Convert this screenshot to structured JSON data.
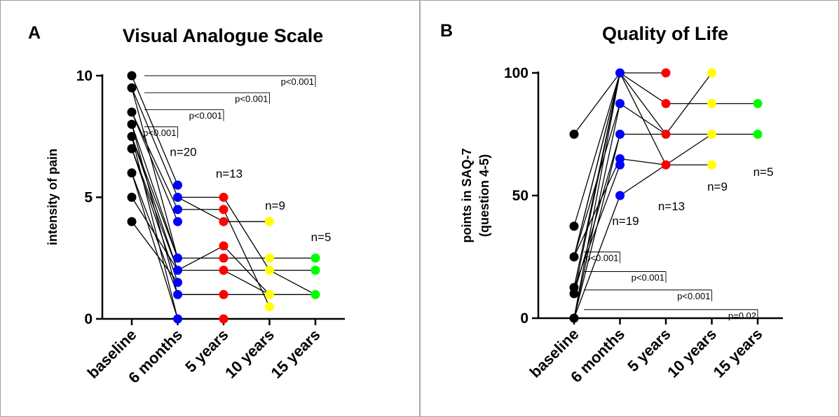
{
  "chart_data": [
    {
      "panel": "A",
      "type": "scatter",
      "title": "Visual  Analogue Scale",
      "xlabel": "",
      "ylabel": "intensity of pain",
      "categories": [
        "baseline",
        "6 months",
        "5 years",
        "10 years",
        "15 years"
      ],
      "ylim": [
        0,
        10
      ],
      "yticks": [
        0,
        5,
        10
      ],
      "group_colors": [
        "#000000",
        "#0000ff",
        "#ff0000",
        "#ffff00",
        "#00ff00"
      ],
      "points": [
        {
          "x": 0,
          "y": 10
        },
        {
          "x": 0,
          "y": 9.5
        },
        {
          "x": 0,
          "y": 8.5
        },
        {
          "x": 0,
          "y": 8
        },
        {
          "x": 0,
          "y": 7.5
        },
        {
          "x": 0,
          "y": 7
        },
        {
          "x": 0,
          "y": 6
        },
        {
          "x": 0,
          "y": 5
        },
        {
          "x": 0,
          "y": 4
        },
        {
          "x": 1,
          "y": 5.5
        },
        {
          "x": 1,
          "y": 5
        },
        {
          "x": 1,
          "y": 4.5
        },
        {
          "x": 1,
          "y": 4
        },
        {
          "x": 1,
          "y": 2.5
        },
        {
          "x": 1,
          "y": 2
        },
        {
          "x": 1,
          "y": 1.5
        },
        {
          "x": 1,
          "y": 1
        },
        {
          "x": 1,
          "y": 0
        },
        {
          "x": 2,
          "y": 5
        },
        {
          "x": 2,
          "y": 4.5
        },
        {
          "x": 2,
          "y": 4
        },
        {
          "x": 2,
          "y": 3
        },
        {
          "x": 2,
          "y": 2.5
        },
        {
          "x": 2,
          "y": 2
        },
        {
          "x": 2,
          "y": 1
        },
        {
          "x": 2,
          "y": 0
        },
        {
          "x": 3,
          "y": 4
        },
        {
          "x": 3,
          "y": 2.5
        },
        {
          "x": 3,
          "y": 2
        },
        {
          "x": 3,
          "y": 1
        },
        {
          "x": 3,
          "y": 0.5
        },
        {
          "x": 4,
          "y": 2.5
        },
        {
          "x": 4,
          "y": 2
        },
        {
          "x": 4,
          "y": 1
        }
      ],
      "links": [
        [
          [
            0,
            10
          ],
          [
            1,
            5.5
          ]
        ],
        [
          [
            0,
            9.5
          ],
          [
            1,
            5
          ]
        ],
        [
          [
            0,
            8.5
          ],
          [
            1,
            4.5
          ]
        ],
        [
          [
            0,
            8
          ],
          [
            1,
            2.5
          ]
        ],
        [
          [
            0,
            7.5
          ],
          [
            1,
            2.5
          ]
        ],
        [
          [
            0,
            7.5
          ],
          [
            1,
            2
          ]
        ],
        [
          [
            0,
            7
          ],
          [
            1,
            2
          ]
        ],
        [
          [
            0,
            7
          ],
          [
            1,
            1.5
          ]
        ],
        [
          [
            0,
            8
          ],
          [
            1,
            1
          ]
        ],
        [
          [
            0,
            6
          ],
          [
            1,
            1
          ]
        ],
        [
          [
            0,
            5
          ],
          [
            1,
            2
          ]
        ],
        [
          [
            0,
            4
          ],
          [
            1,
            1.5
          ]
        ],
        [
          [
            0,
            7.5
          ],
          [
            1,
            0
          ]
        ],
        [
          [
            0,
            9.5
          ],
          [
            1,
            2.5
          ]
        ],
        [
          [
            0,
            8.5
          ],
          [
            1,
            4
          ]
        ],
        [
          [
            0,
            6
          ],
          [
            1,
            0
          ]
        ],
        [
          [
            1,
            5
          ],
          [
            2,
            5
          ]
        ],
        [
          [
            1,
            4.5
          ],
          [
            2,
            4.5
          ]
        ],
        [
          [
            1,
            5
          ],
          [
            2,
            4
          ]
        ],
        [
          [
            1,
            2.5
          ],
          [
            2,
            2.5
          ]
        ],
        [
          [
            1,
            2
          ],
          [
            2,
            2
          ]
        ],
        [
          [
            1,
            2
          ],
          [
            2,
            3
          ]
        ],
        [
          [
            1,
            1
          ],
          [
            2,
            1
          ]
        ],
        [
          [
            1,
            0
          ],
          [
            2,
            0
          ]
        ],
        [
          [
            1,
            1
          ],
          [
            2,
            1
          ]
        ],
        [
          [
            2,
            5
          ],
          [
            3,
            2
          ]
        ],
        [
          [
            2,
            4
          ],
          [
            3,
            4
          ]
        ],
        [
          [
            2,
            3
          ],
          [
            3,
            1
          ]
        ],
        [
          [
            2,
            2.5
          ],
          [
            3,
            2.5
          ]
        ],
        [
          [
            2,
            2
          ],
          [
            3,
            2
          ]
        ],
        [
          [
            2,
            4.5
          ],
          [
            3,
            0.5
          ]
        ],
        [
          [
            2,
            1
          ],
          [
            3,
            1
          ]
        ],
        [
          [
            2,
            2
          ],
          [
            3,
            1
          ]
        ],
        [
          [
            3,
            2.5
          ],
          [
            4,
            2.5
          ]
        ],
        [
          [
            3,
            2
          ],
          [
            4,
            2
          ]
        ],
        [
          [
            3,
            1
          ],
          [
            4,
            1
          ]
        ],
        [
          [
            3,
            2
          ],
          [
            4,
            1
          ]
        ]
      ],
      "annotations": [
        {
          "text": "n=20",
          "x": 1,
          "y": 6.7
        },
        {
          "text": "n=13",
          "x": 2,
          "y": 5.8
        },
        {
          "text": "n=9",
          "x": 3,
          "y": 4.5
        },
        {
          "text": "n=5",
          "x": 4,
          "y": 3.2
        }
      ],
      "significance": [
        {
          "label": "p<0.001",
          "from": 0,
          "to": 4,
          "y": 10
        },
        {
          "label": "p<0.001",
          "from": 0,
          "to": 3,
          "y": 9.3
        },
        {
          "label": "p<0.001",
          "from": 0,
          "to": 2,
          "y": 8.6
        },
        {
          "label": "p<0.001",
          "from": 0,
          "to": 1,
          "y": 7.9
        }
      ]
    },
    {
      "panel": "B",
      "type": "scatter",
      "title": "Quality of Life",
      "xlabel": "",
      "ylabel": "points in SAQ-7",
      "ylabel2": "(question 4-5)",
      "categories": [
        "baseline",
        "6 months",
        "5 years",
        "10 years",
        "15 years"
      ],
      "ylim": [
        0,
        100
      ],
      "yticks": [
        0,
        50,
        100
      ],
      "group_colors": [
        "#000000",
        "#0000ff",
        "#ff0000",
        "#ffff00",
        "#00ff00"
      ],
      "points": [
        {
          "x": 0,
          "y": 75
        },
        {
          "x": 0,
          "y": 37.5
        },
        {
          "x": 0,
          "y": 25
        },
        {
          "x": 0,
          "y": 12.5
        },
        {
          "x": 0,
          "y": 10
        },
        {
          "x": 0,
          "y": 0
        },
        {
          "x": 1,
          "y": 100
        },
        {
          "x": 1,
          "y": 87.5
        },
        {
          "x": 1,
          "y": 75
        },
        {
          "x": 1,
          "y": 65
        },
        {
          "x": 1,
          "y": 62.5
        },
        {
          "x": 1,
          "y": 50
        },
        {
          "x": 2,
          "y": 100
        },
        {
          "x": 2,
          "y": 87.5
        },
        {
          "x": 2,
          "y": 75
        },
        {
          "x": 2,
          "y": 62.5
        },
        {
          "x": 3,
          "y": 100
        },
        {
          "x": 3,
          "y": 87.5
        },
        {
          "x": 3,
          "y": 75
        },
        {
          "x": 3,
          "y": 62.5
        },
        {
          "x": 4,
          "y": 87.5
        },
        {
          "x": 4,
          "y": 75
        }
      ],
      "links": [
        [
          [
            0,
            75
          ],
          [
            1,
            100
          ]
        ],
        [
          [
            0,
            37.5
          ],
          [
            1,
            100
          ]
        ],
        [
          [
            0,
            25
          ],
          [
            1,
            100
          ]
        ],
        [
          [
            0,
            25
          ],
          [
            1,
            87.5
          ]
        ],
        [
          [
            0,
            12.5
          ],
          [
            1,
            100
          ]
        ],
        [
          [
            0,
            10
          ],
          [
            1,
            100
          ]
        ],
        [
          [
            0,
            0
          ],
          [
            1,
            100
          ]
        ],
        [
          [
            0,
            0
          ],
          [
            1,
            75
          ]
        ],
        [
          [
            0,
            25
          ],
          [
            1,
            65
          ]
        ],
        [
          [
            0,
            12.5
          ],
          [
            1,
            62.5
          ]
        ],
        [
          [
            0,
            0
          ],
          [
            1,
            50
          ]
        ],
        [
          [
            0,
            0
          ],
          [
            1,
            87.5
          ]
        ],
        [
          [
            0,
            10
          ],
          [
            1,
            75
          ]
        ],
        [
          [
            0,
            25
          ],
          [
            1,
            100
          ]
        ],
        [
          [
            1,
            100
          ],
          [
            2,
            100
          ]
        ],
        [
          [
            1,
            100
          ],
          [
            2,
            87.5
          ]
        ],
        [
          [
            1,
            100
          ],
          [
            2,
            75
          ]
        ],
        [
          [
            1,
            100
          ],
          [
            2,
            62.5
          ]
        ],
        [
          [
            1,
            87.5
          ],
          [
            2,
            75
          ]
        ],
        [
          [
            1,
            75
          ],
          [
            2,
            75
          ]
        ],
        [
          [
            1,
            65
          ],
          [
            2,
            62.5
          ]
        ],
        [
          [
            1,
            50
          ],
          [
            2,
            62.5
          ]
        ],
        [
          [
            2,
            87.5
          ],
          [
            3,
            87.5
          ]
        ],
        [
          [
            2,
            75
          ],
          [
            3,
            100
          ]
        ],
        [
          [
            2,
            62.5
          ],
          [
            3,
            62.5
          ]
        ],
        [
          [
            2,
            62.5
          ],
          [
            3,
            75
          ]
        ],
        [
          [
            2,
            75
          ],
          [
            3,
            75
          ]
        ],
        [
          [
            3,
            87.5
          ],
          [
            4,
            87.5
          ]
        ],
        [
          [
            3,
            75
          ],
          [
            4,
            75
          ]
        ]
      ],
      "annotations": [
        {
          "text": "n=19",
          "x": 1,
          "y": 38
        },
        {
          "text": "n=13",
          "x": 2,
          "y": 44
        },
        {
          "text": "n=9",
          "x": 3,
          "y": 52
        },
        {
          "text": "n=5",
          "x": 4,
          "y": 58
        }
      ],
      "significance": [
        {
          "label": "p<0.001",
          "from": 0,
          "to": 1,
          "y": 27
        },
        {
          "label": "p<0.001",
          "from": 0,
          "to": 2,
          "y": 19
        },
        {
          "label": "p<0.001",
          "from": 0,
          "to": 3,
          "y": 11.5
        },
        {
          "label": "p=0.02",
          "from": 0,
          "to": 4,
          "y": 3.5
        }
      ]
    }
  ]
}
